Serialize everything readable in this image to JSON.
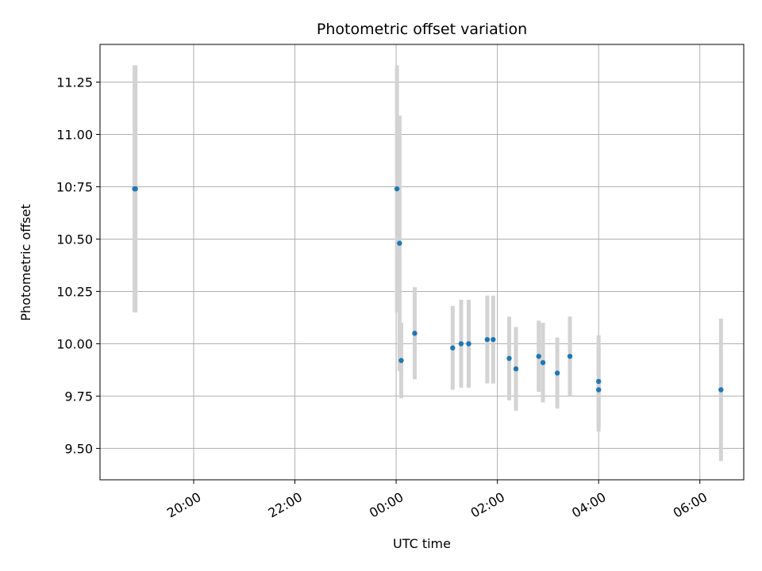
{
  "chart_data": {
    "type": "scatter",
    "title": "Photometric offset variation",
    "xlabel": "UTC time",
    "ylabel": "Photometric offset",
    "grid": true,
    "x_axis_kind": "time",
    "xlim": [
      "18:09",
      "06:52"
    ],
    "ylim": [
      9.35,
      11.43
    ],
    "x_ticks": [
      "20:00",
      "22:00",
      "00:00",
      "02:00",
      "04:00",
      "06:00"
    ],
    "y_ticks": [
      "9.50",
      "9.75",
      "10.00",
      "10.25",
      "10.50",
      "10:75",
      "11.00",
      "11.25"
    ],
    "marker_color": "#1f77b4",
    "errorbar_color": "#d3d3d3",
    "points": [
      {
        "t": "18:50",
        "y": 10.74,
        "err": 0.59
      },
      {
        "t": "18:51",
        "y": 10.74,
        "err": 0.59
      },
      {
        "t": "00:01",
        "y": 10.74,
        "err": 0.59
      },
      {
        "t": "00:04",
        "y": 10.48,
        "err": 0.61
      },
      {
        "t": "00:06",
        "y": 9.92,
        "err": 0.18
      },
      {
        "t": "00:22",
        "y": 10.05,
        "err": 0.22
      },
      {
        "t": "01:07",
        "y": 9.98,
        "err": 0.2
      },
      {
        "t": "01:17",
        "y": 10.0,
        "err": 0.21
      },
      {
        "t": "01:26",
        "y": 10.0,
        "err": 0.21
      },
      {
        "t": "01:48",
        "y": 10.02,
        "err": 0.21
      },
      {
        "t": "01:55",
        "y": 10.02,
        "err": 0.21
      },
      {
        "t": "02:14",
        "y": 9.93,
        "err": 0.2
      },
      {
        "t": "02:22",
        "y": 9.88,
        "err": 0.2
      },
      {
        "t": "02:49",
        "y": 9.94,
        "err": 0.17
      },
      {
        "t": "02:54",
        "y": 9.91,
        "err": 0.19
      },
      {
        "t": "03:11",
        "y": 9.86,
        "err": 0.17
      },
      {
        "t": "03:26",
        "y": 9.94,
        "err": 0.19
      },
      {
        "t": "04:00",
        "y": 9.82,
        "err": 0.22
      },
      {
        "t": "04:00",
        "y": 9.78,
        "err": 0.2
      },
      {
        "t": "06:25",
        "y": 9.78,
        "err": 0.34
      }
    ]
  }
}
